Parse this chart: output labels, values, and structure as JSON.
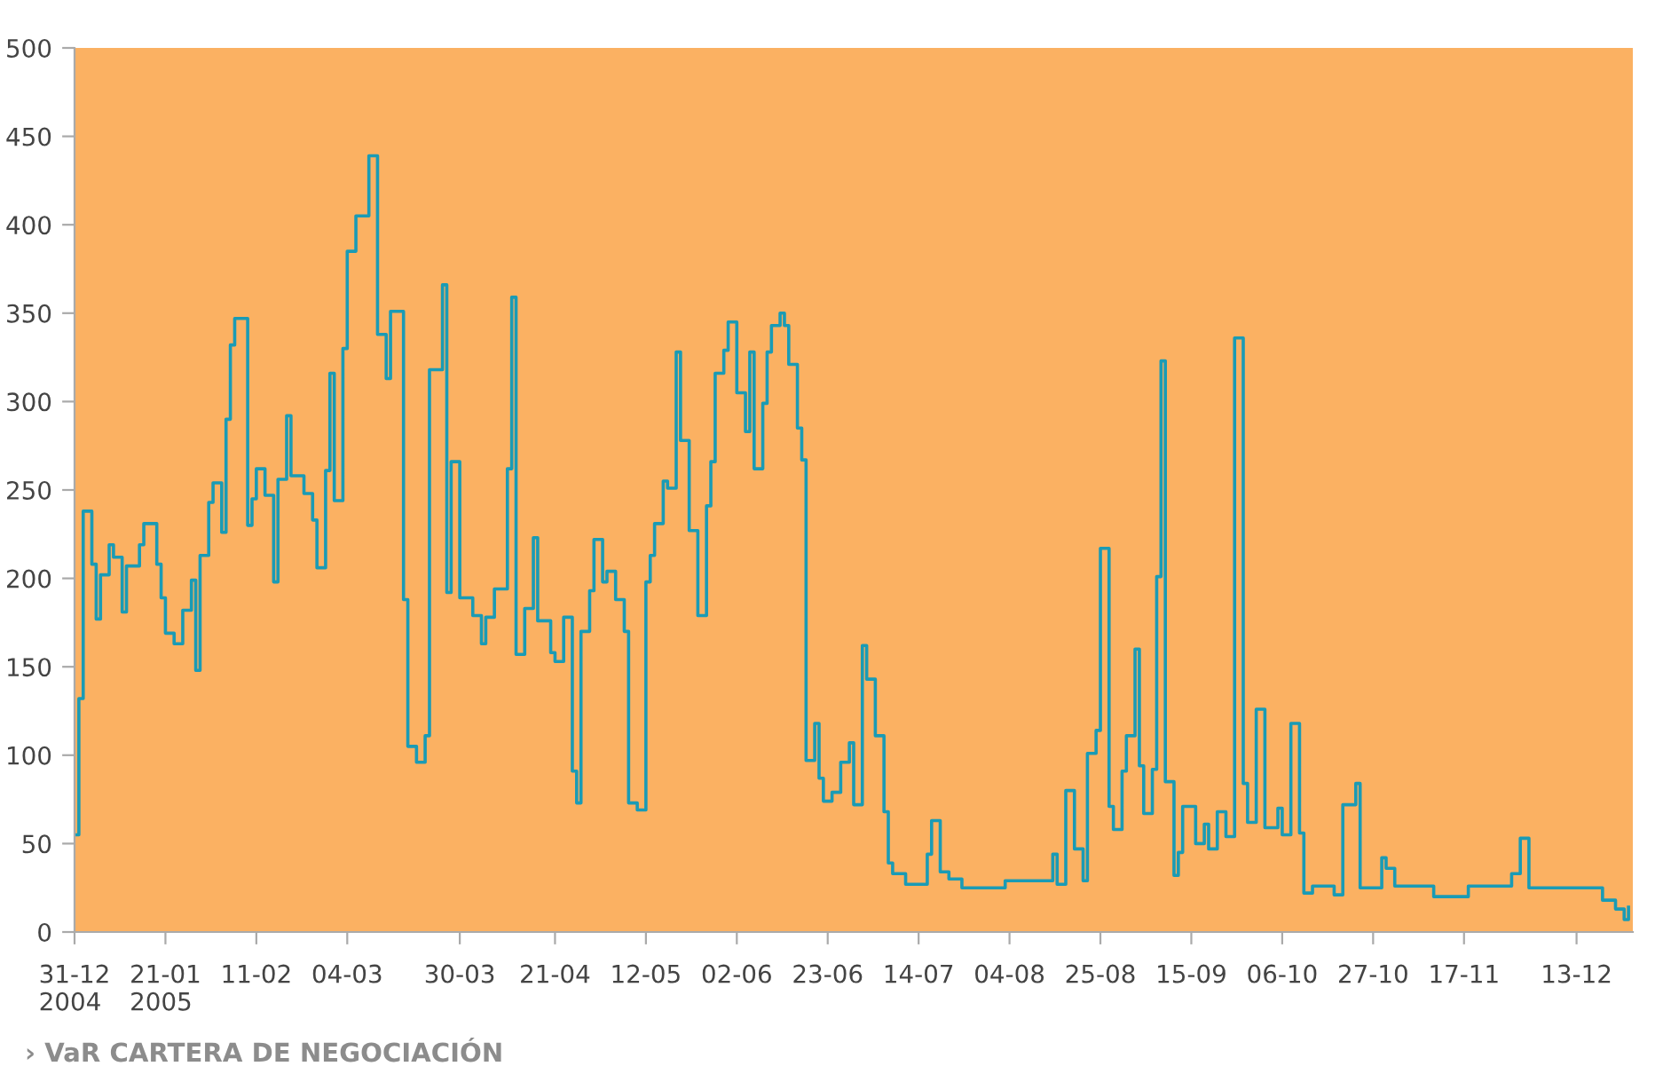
{
  "chart_data": {
    "type": "step",
    "title": "› VaR CARTERA DE NEGOCIACIÓN",
    "color": "#1a9bb5",
    "x": [
      "2004-12-31",
      "2005-01-01",
      "2005-01-02",
      "2005-01-04",
      "2005-01-05",
      "2005-01-06",
      "2005-01-08",
      "2005-01-09",
      "2005-01-11",
      "2005-01-12",
      "2005-01-15",
      "2005-01-16",
      "2005-01-19",
      "2005-01-20",
      "2005-01-21",
      "2005-01-23",
      "2005-01-25",
      "2005-01-27",
      "2005-01-28",
      "2005-01-29",
      "2005-01-31",
      "2005-02-01",
      "2005-02-03",
      "2005-02-04",
      "2005-02-05",
      "2005-02-06",
      "2005-02-09",
      "2005-02-10",
      "2005-02-11",
      "2005-02-13",
      "2005-02-15",
      "2005-02-16",
      "2005-02-18",
      "2005-02-19",
      "2005-02-22",
      "2005-02-24",
      "2005-02-25",
      "2005-02-27",
      "2005-02-28",
      "2005-03-01",
      "2005-03-03",
      "2005-03-04",
      "2005-03-06",
      "2005-03-09",
      "2005-03-11",
      "2005-03-13",
      "2005-03-14",
      "2005-03-17",
      "2005-03-18",
      "2005-03-20",
      "2005-03-22",
      "2005-03-23",
      "2005-03-26",
      "2005-03-27",
      "2005-03-28",
      "2005-03-30",
      "2005-04-02",
      "2005-04-04",
      "2005-04-05",
      "2005-04-07",
      "2005-04-10",
      "2005-04-11",
      "2005-04-12",
      "2005-04-14",
      "2005-04-16",
      "2005-04-17",
      "2005-04-20",
      "2005-04-21",
      "2005-04-23",
      "2005-04-25",
      "2005-04-26",
      "2005-04-27",
      "2005-04-29",
      "2005-04-30",
      "2005-05-02",
      "2005-05-03",
      "2005-05-05",
      "2005-05-07",
      "2005-05-08",
      "2005-05-10",
      "2005-05-12",
      "2005-05-13",
      "2005-05-14",
      "2005-05-16",
      "2005-05-17",
      "2005-05-19",
      "2005-05-20",
      "2005-05-22",
      "2005-05-24",
      "2005-05-26",
      "2005-05-27",
      "2005-05-28",
      "2005-05-30",
      "2005-05-31",
      "2005-06-02",
      "2005-06-04",
      "2005-06-05",
      "2005-06-06",
      "2005-06-08",
      "2005-06-09",
      "2005-06-10",
      "2005-06-12",
      "2005-06-13",
      "2005-06-14",
      "2005-06-16",
      "2005-06-17",
      "2005-06-18",
      "2005-06-20",
      "2005-06-21",
      "2005-06-22",
      "2005-06-24",
      "2005-06-26",
      "2005-06-28",
      "2005-06-29",
      "2005-07-01",
      "2005-07-02",
      "2005-07-04",
      "2005-07-06",
      "2005-07-07",
      "2005-07-08",
      "2005-07-11",
      "2005-07-16",
      "2005-07-17",
      "2005-07-19",
      "2005-07-21",
      "2005-07-24",
      "2005-08-03",
      "2005-08-14",
      "2005-08-15",
      "2005-08-17",
      "2005-08-19",
      "2005-08-21",
      "2005-08-22",
      "2005-08-24",
      "2005-08-25",
      "2005-08-27",
      "2005-08-28",
      "2005-08-30",
      "2005-08-31",
      "2005-09-02",
      "2005-09-03",
      "2005-09-04",
      "2005-09-06",
      "2005-09-07",
      "2005-09-08",
      "2005-09-09",
      "2005-09-11",
      "2005-09-12",
      "2005-09-13",
      "2005-09-16",
      "2005-09-18",
      "2005-09-19",
      "2005-09-21",
      "2005-09-23",
      "2005-09-25",
      "2005-09-27",
      "2005-09-28",
      "2005-09-30",
      "2005-10-02",
      "2005-10-05",
      "2005-10-06",
      "2005-10-08",
      "2005-10-10",
      "2005-10-11",
      "2005-10-13",
      "2005-10-18",
      "2005-10-20",
      "2005-10-23",
      "2005-10-24",
      "2005-10-29",
      "2005-10-30",
      "2005-11-01",
      "2005-11-10",
      "2005-11-18",
      "2005-11-28",
      "2005-11-30",
      "2005-12-02",
      "2005-12-19",
      "2005-12-22",
      "2005-12-24",
      "2005-12-25"
    ],
    "values": [
      55,
      132,
      238,
      208,
      177,
      202,
      219,
      212,
      181,
      207,
      219,
      231,
      208,
      189,
      169,
      163,
      182,
      199,
      148,
      213,
      243,
      254,
      226,
      290,
      332,
      347,
      230,
      245,
      262,
      247,
      198,
      256,
      292,
      258,
      248,
      233,
      206,
      261,
      316,
      244,
      330,
      385,
      405,
      439,
      338,
      313,
      351,
      188,
      105,
      96,
      111,
      318,
      366,
      192,
      266,
      189,
      179,
      163,
      178,
      194,
      262,
      359,
      157,
      183,
      223,
      176,
      158,
      153,
      178,
      91,
      73,
      170,
      193,
      222,
      198,
      204,
      188,
      170,
      73,
      69,
      198,
      213,
      231,
      255,
      251,
      328,
      278,
      227,
      179,
      241,
      266,
      316,
      329,
      345,
      305,
      283,
      328,
      262,
      299,
      328,
      343,
      350,
      343,
      321,
      285,
      267,
      97,
      118,
      87,
      74,
      79,
      96,
      107,
      72,
      162,
      143,
      111,
      68,
      39,
      33,
      27,
      44,
      63,
      34,
      30,
      25,
      29,
      44,
      27,
      80,
      47,
      29,
      101,
      114,
      217,
      71,
      58,
      91,
      111,
      160,
      94,
      67,
      92,
      201,
      323,
      85,
      32,
      45,
      71,
      50,
      61,
      47,
      68,
      54,
      336,
      84,
      62,
      126,
      59,
      70,
      55,
      118,
      56,
      22,
      26,
      21,
      72,
      84,
      25,
      42,
      36,
      26,
      20,
      26,
      33,
      53,
      25,
      18,
      13,
      7,
      14
    ],
    "xlim": [
      "2004-12-31",
      "2005-12-26"
    ],
    "ylim": [
      0,
      500
    ],
    "xticks": [
      {
        "value": "2004-12-31",
        "label": "31-12\n2004"
      },
      {
        "value": "2005-01-21",
        "label": "21-01\n2005"
      },
      {
        "value": "2005-02-11",
        "label": "11-02"
      },
      {
        "value": "2005-03-04",
        "label": "04-03"
      },
      {
        "value": "2005-03-30",
        "label": "30-03"
      },
      {
        "value": "2005-04-21",
        "label": "21-04"
      },
      {
        "value": "2005-05-12",
        "label": "12-05"
      },
      {
        "value": "2005-06-02",
        "label": "02-06"
      },
      {
        "value": "2005-06-23",
        "label": "23-06"
      },
      {
        "value": "2005-07-14",
        "label": "14-07"
      },
      {
        "value": "2005-08-04",
        "label": "04-08"
      },
      {
        "value": "2005-08-25",
        "label": "25-08"
      },
      {
        "value": "2005-09-15",
        "label": "15-09"
      },
      {
        "value": "2005-10-06",
        "label": "06-10"
      },
      {
        "value": "2005-10-27",
        "label": "27-10"
      },
      {
        "value": "2005-11-17",
        "label": "17-11"
      },
      {
        "value": "2005-12-13",
        "label": "13-12"
      }
    ],
    "yticks": [
      0,
      50,
      100,
      150,
      200,
      250,
      300,
      350,
      400,
      450,
      500
    ]
  }
}
